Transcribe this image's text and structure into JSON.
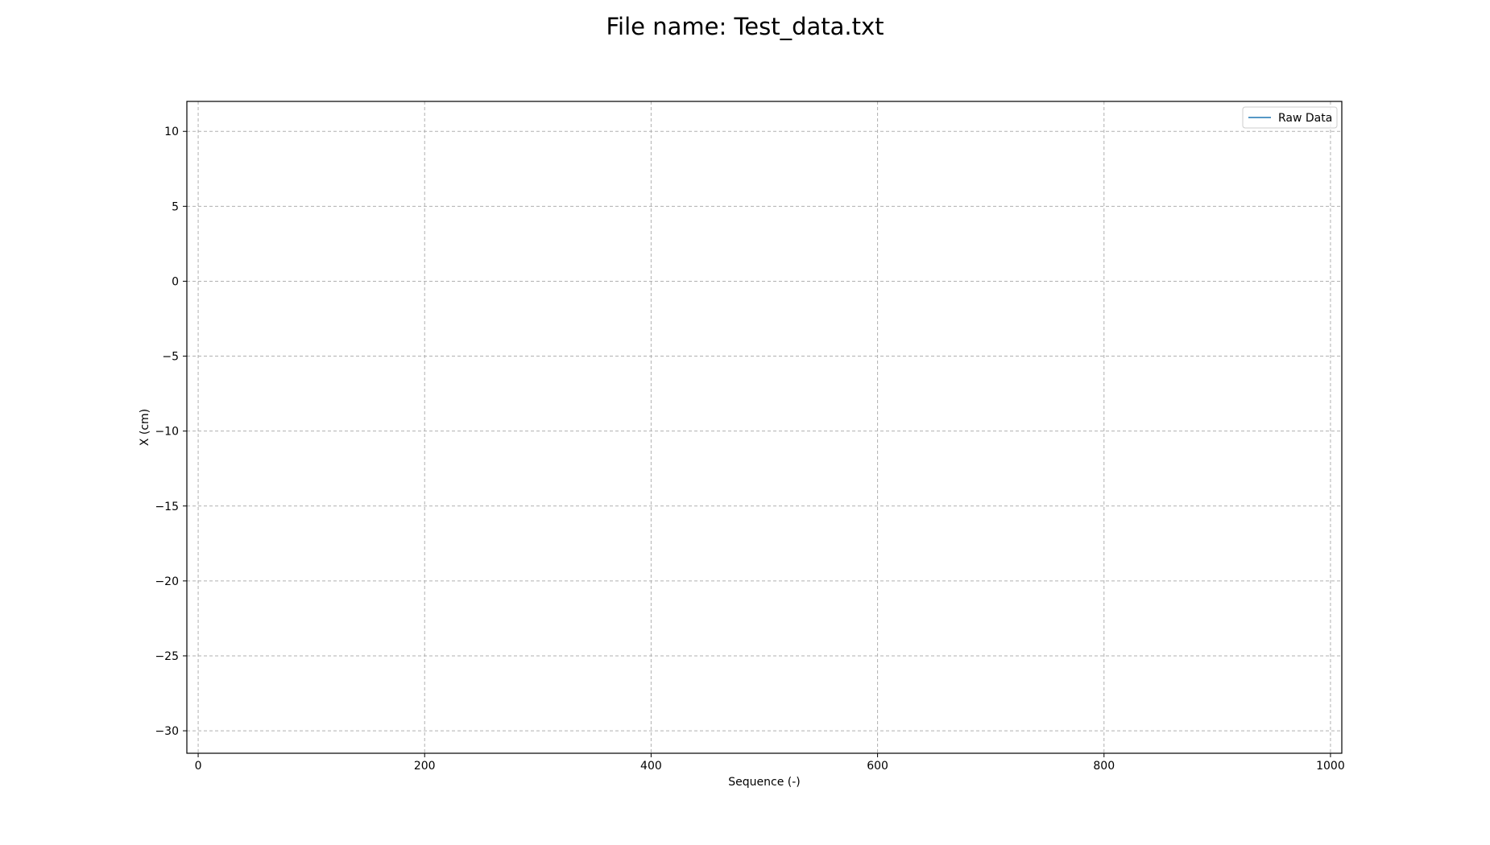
{
  "chart_data": {
    "type": "line",
    "title": "File name: Test_data.txt",
    "xlabel": "Sequence (-)",
    "ylabel": "X (cm)",
    "xlim": [
      -10,
      1010
    ],
    "ylim": [
      -31.5,
      12
    ],
    "x_ticks": [
      0,
      200,
      400,
      600,
      800,
      1000
    ],
    "y_ticks": [
      10,
      5,
      0,
      -5,
      -10,
      -15,
      -20,
      -25,
      -30
    ],
    "grid": true,
    "legend_placement": "top-right",
    "series": [
      {
        "name": "Raw Data",
        "color": "#1f77b4",
        "x": [],
        "y": []
      }
    ]
  }
}
